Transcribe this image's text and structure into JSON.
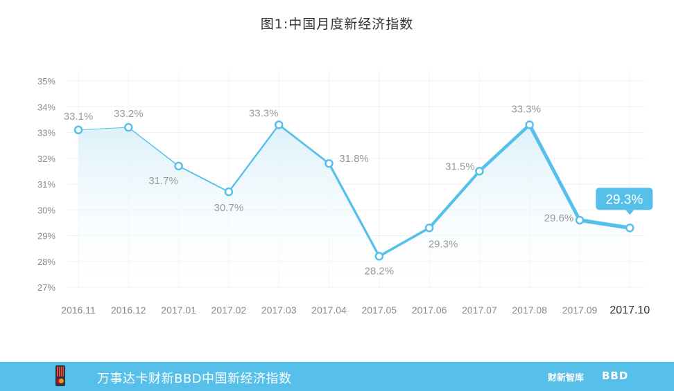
{
  "title": "图1:中国月度新经济指数",
  "chart_data": {
    "type": "line",
    "categories": [
      "2016.11",
      "2016.12",
      "2017.01",
      "2017.02",
      "2017.03",
      "2017.04",
      "2017.05",
      "2017.06",
      "2017.07",
      "2017.08",
      "2017.09",
      "2017.10"
    ],
    "values": [
      33.1,
      33.2,
      31.7,
      30.7,
      33.3,
      31.8,
      28.2,
      29.3,
      31.5,
      33.3,
      29.6,
      29.3
    ],
    "data_labels": [
      "33.1%",
      "33.2%",
      "31.7%",
      "30.7%",
      "33.3%",
      "31.8%",
      "28.2%",
      "29.3%",
      "31.5%",
      "33.3%",
      "29.6%",
      "29.3%"
    ],
    "y_ticks": [
      "27%",
      "28%",
      "29%",
      "30%",
      "31%",
      "32%",
      "33%",
      "34%",
      "35%"
    ],
    "ylim": [
      27,
      35
    ],
    "grid": true,
    "highlight_last": true,
    "colors": {
      "line": "#56c0ea",
      "area_top": "#dff2fb",
      "label": "#999999",
      "highlight_text": "#333333"
    }
  },
  "footer": {
    "name": "万事达卡财新BBD中国新经济指数",
    "brand1": "财新智库",
    "brand2": "BBD"
  }
}
